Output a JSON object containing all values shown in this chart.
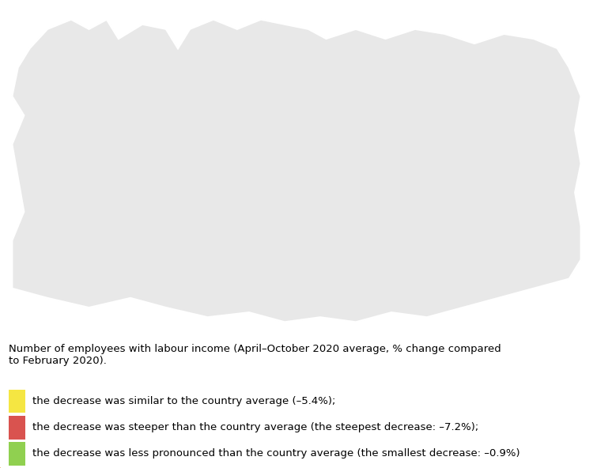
{
  "description_text": "Number of employees with labour income (April–October 2020 average, % change compared\nto February 2020).",
  "legend_items": [
    {
      "color": "#f5e642",
      "text": "the decrease was similar to the country average (–5.4%);"
    },
    {
      "color": "#d9534f",
      "text": "the decrease was steeper than the country average (the steepest decrease: –7.2%);"
    },
    {
      "color": "#90d050",
      "text": "the decrease was less pronounced than the country average (the smallest decrease: –0.9%)"
    }
  ],
  "background_color": "#ffffff",
  "figsize": [
    7.5,
    5.92
  ],
  "dpi": 100
}
